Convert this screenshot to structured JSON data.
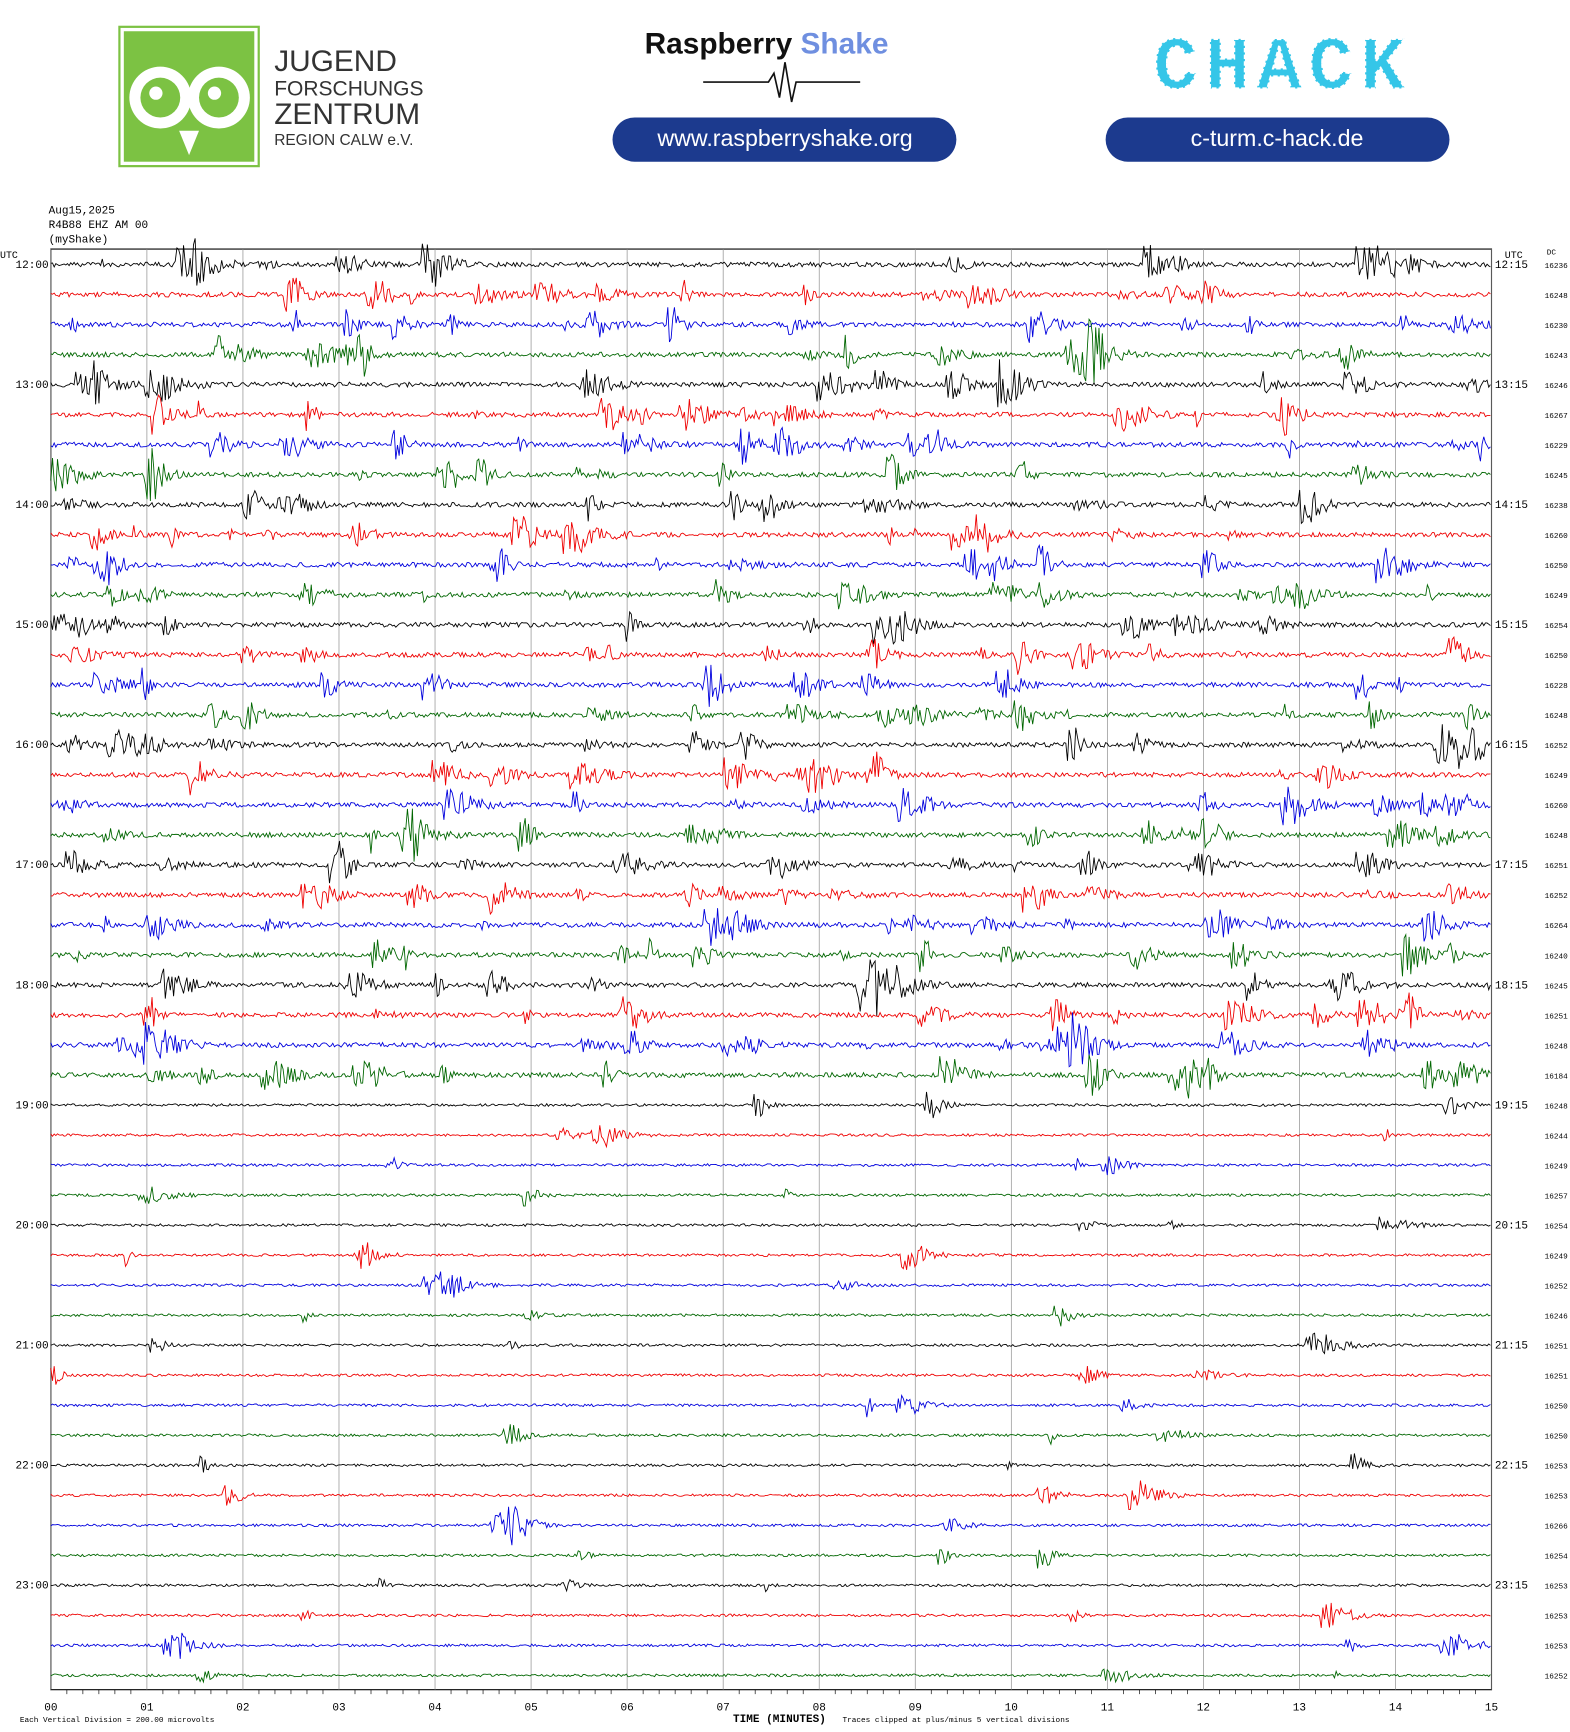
{
  "header": {
    "jfz": [
      "JUGEND",
      "FORSCHUNGS",
      "ZENTRUM",
      "REGION CALW e.V."
    ],
    "rs_name": "Raspberry",
    "rs_name2": "Shake",
    "rs_url": "www.raspberryshake.org",
    "chack": "CHACK",
    "chack_url": "c-turm.c-hack.de"
  },
  "plot": {
    "date": "Aug15,2025",
    "station": "R4B88 EHZ AM 00",
    "source": "(myShake)",
    "left_unit": "UTC",
    "right_unit": "UTC",
    "dc_header": "DC",
    "left_labels": [
      "12:00",
      "13:00",
      "14:00",
      "15:00",
      "16:00",
      "17:00",
      "18:00",
      "19:00",
      "20:00",
      "21:00",
      "22:00",
      "23:00"
    ],
    "right_labels": [
      "12:15",
      "13:15",
      "14:15",
      "15:15",
      "16:15",
      "17:15",
      "18:15",
      "19:15",
      "20:15",
      "21:15",
      "22:15",
      "23:15"
    ],
    "dc_values": [
      16236,
      16248,
      16230,
      16243,
      16246,
      16267,
      16229,
      16245,
      16238,
      16260,
      16250,
      16249,
      16254,
      16250,
      16228,
      16248,
      16252,
      16249,
      16260,
      16248,
      16251,
      16252,
      16264,
      16240,
      16245,
      16251,
      16248,
      16184,
      16248,
      16244,
      16249,
      16257,
      16254,
      16249,
      16252,
      16246,
      16251,
      16251,
      16250,
      16250,
      16253,
      16253,
      16266,
      16254,
      16253,
      16253,
      16253,
      16252
    ],
    "x_labels": [
      "00",
      "01",
      "02",
      "03",
      "04",
      "05",
      "06",
      "07",
      "08",
      "09",
      "10",
      "11",
      "12",
      "13",
      "14",
      "15"
    ],
    "x_title": "TIME (MINUTES)"
  },
  "footer": {
    "division": "Each Vertical Division =  200.00 microvolts",
    "clip": "Traces clipped at plus/minus 5 vertical divisions"
  }
}
